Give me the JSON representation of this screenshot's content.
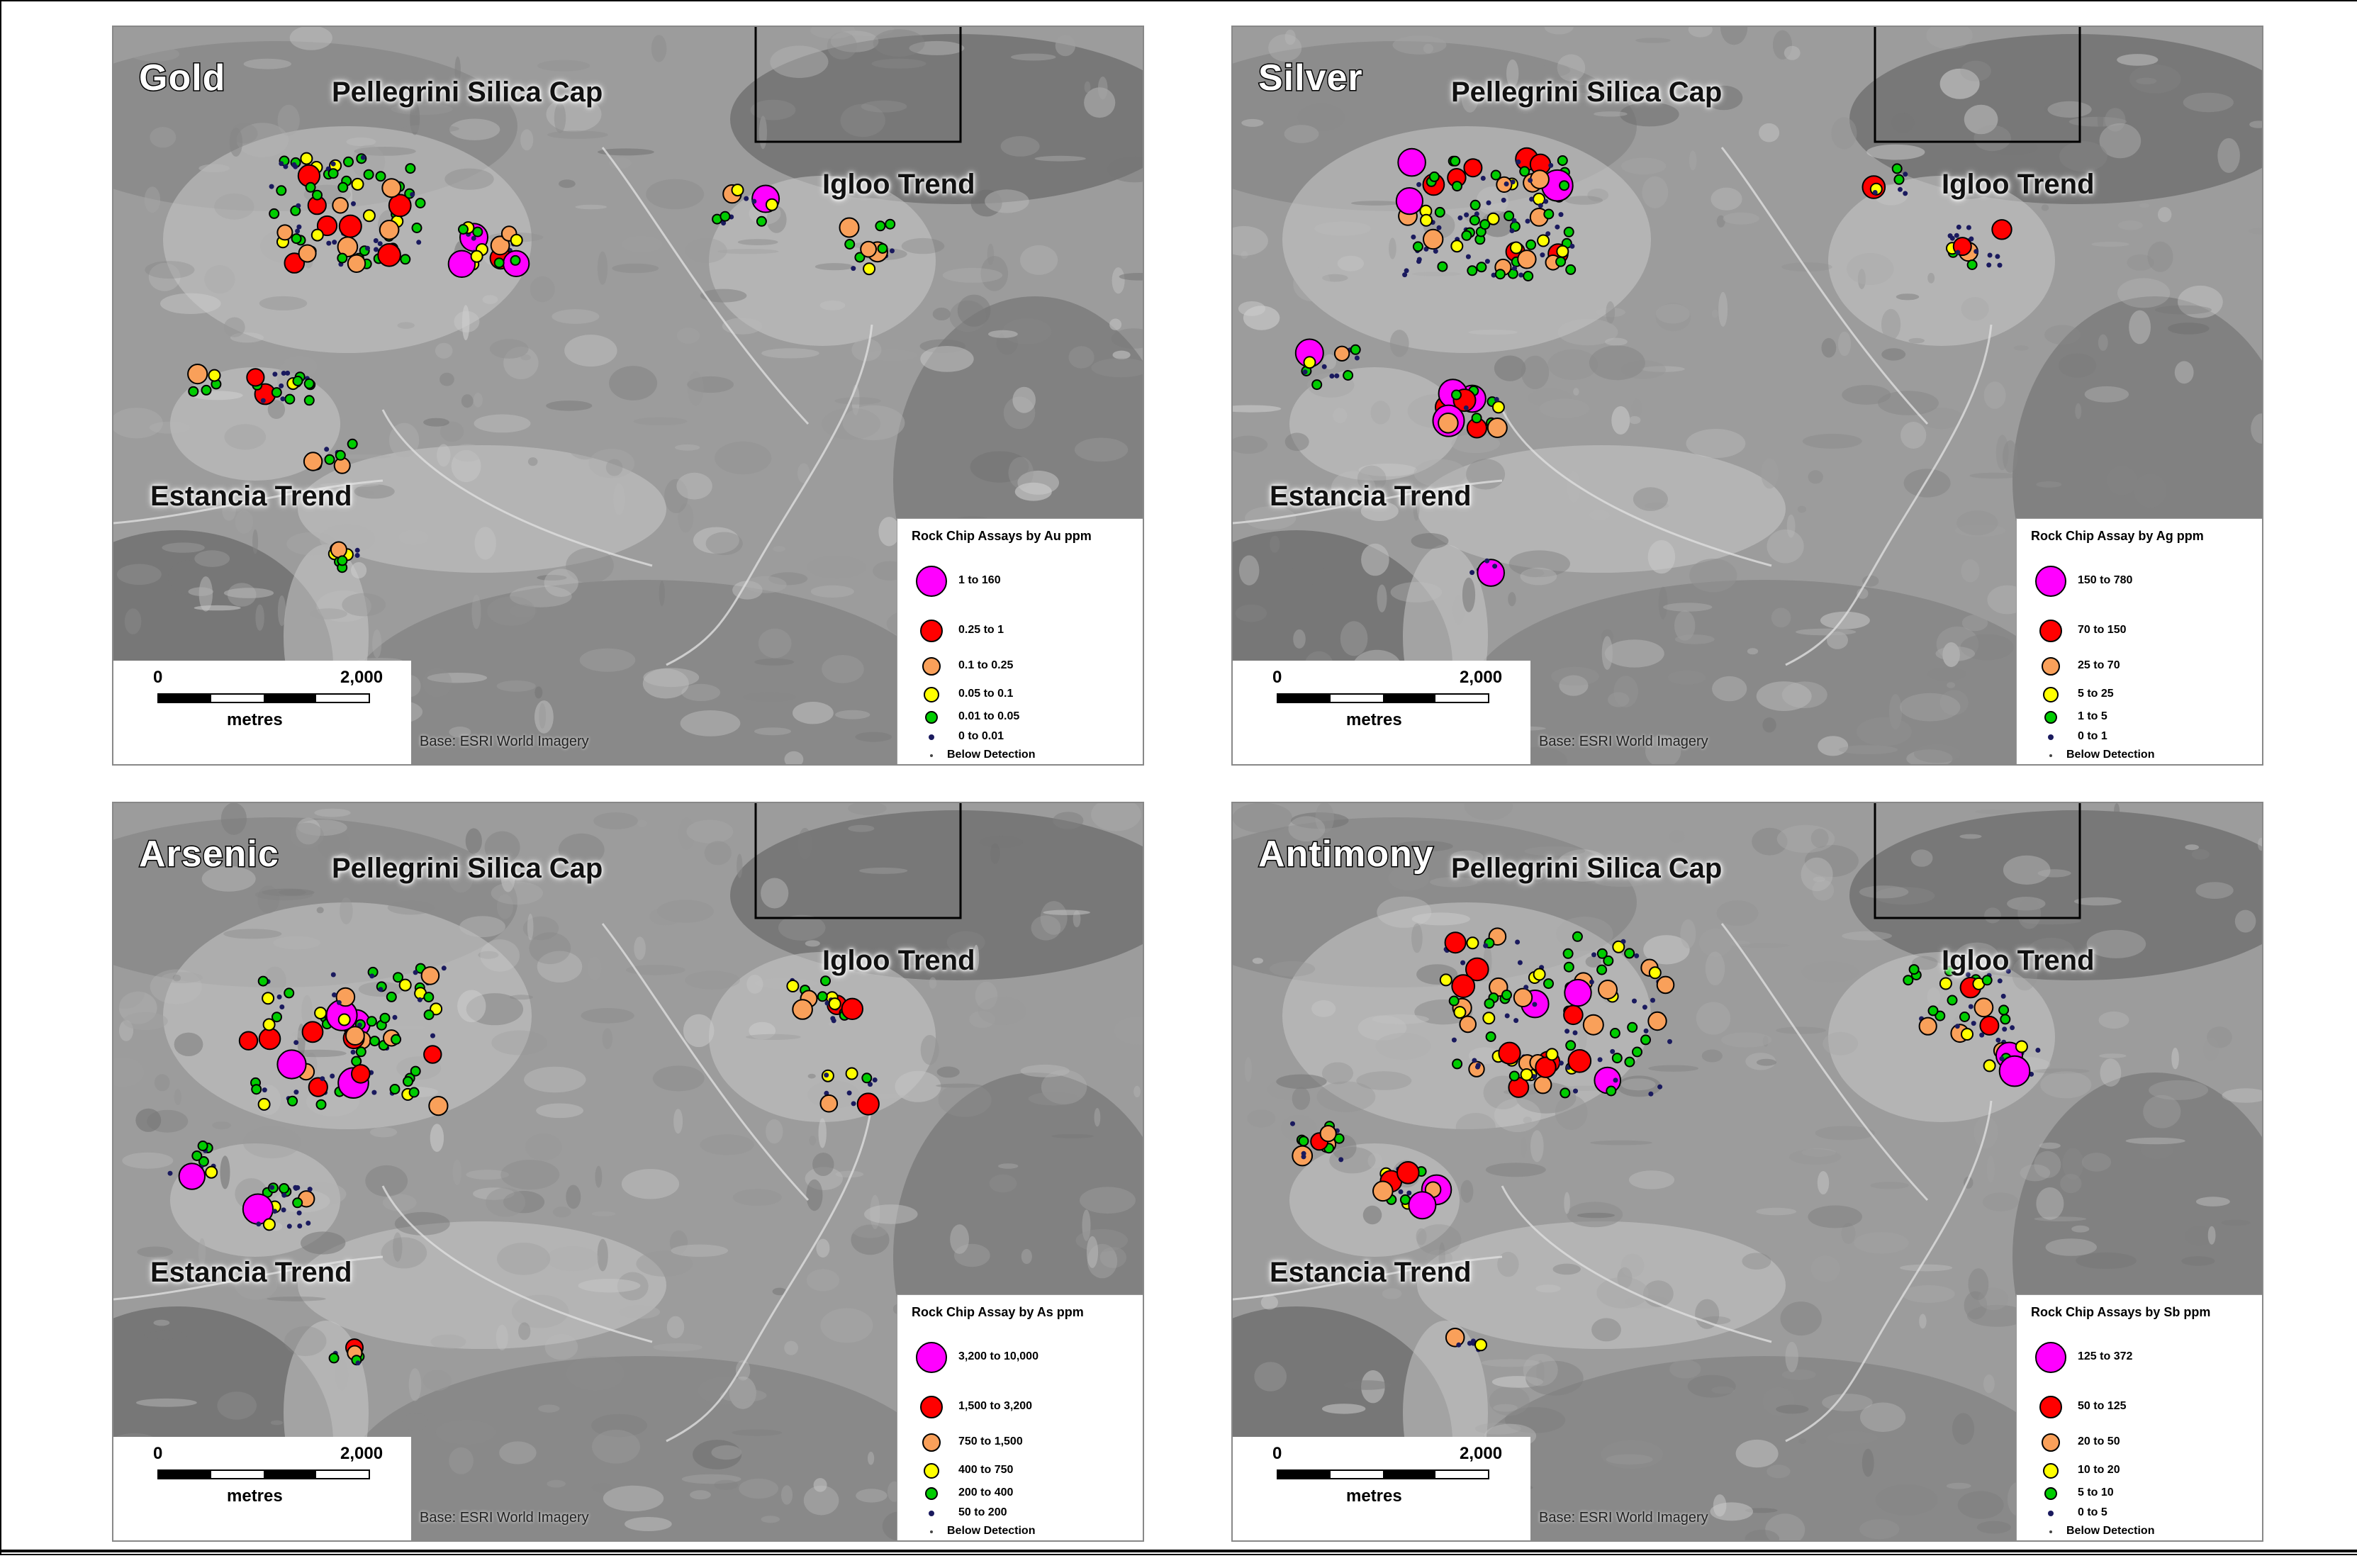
{
  "shared": {
    "labels": {
      "silica_cap": "Pellegrini Silica Cap",
      "igloo": "Igloo Trend",
      "estancia": "Estancia Trend"
    },
    "scale": {
      "zero": "0",
      "max": "2,000",
      "unit": "metres"
    },
    "base_credit": "Base: ESRI World Imagery"
  },
  "panels": [
    {
      "title": "Gold",
      "legend": {
        "title": "Rock Chip Assays by Au ppm",
        "classes": [
          {
            "label": "1      to 160",
            "color": "#ff00ff"
          },
          {
            "label": "0.25 to     1",
            "color": "#ff0000"
          },
          {
            "label": "0.1    to     0.25",
            "color": "#f9a05a"
          },
          {
            "label": "0.05 to     0.1",
            "color": "#ffff00"
          },
          {
            "label": "0.01 to     0.05",
            "color": "#00cc00"
          },
          {
            "label": "0        to     0.01",
            "color": "#1a1a5e"
          },
          {
            "label": "Below Detection",
            "color": "#444444"
          }
        ]
      }
    },
    {
      "title": "Silver",
      "legend": {
        "title": "Rock Chip Assay by Ag ppm",
        "classes": [
          {
            "label": "150 to 780",
            "color": "#ff00ff"
          },
          {
            "label": "70 to  150",
            "color": "#ff0000"
          },
          {
            "label": "25 to    70",
            "color": "#f9a05a"
          },
          {
            "label": "5 to    25",
            "color": "#ffff00"
          },
          {
            "label": "1 to      5",
            "color": "#00cc00"
          },
          {
            "label": "0 to      1",
            "color": "#1a1a5e"
          },
          {
            "label": "Below Detection",
            "color": "#444444"
          }
        ]
      }
    },
    {
      "title": "Arsenic",
      "legend": {
        "title": "Rock Chip Assay by As ppm",
        "classes": [
          {
            "label": "3,200 to 10,000",
            "color": "#ff00ff"
          },
          {
            "label": "1,500 to   3,200",
            "color": "#ff0000"
          },
          {
            "label": "750 to   1,500",
            "color": "#f9a05a"
          },
          {
            "label": "400 to      750",
            "color": "#ffff00"
          },
          {
            "label": "200 to      400",
            "color": "#00cc00"
          },
          {
            "label": "50 to      200",
            "color": "#1a1a5e"
          },
          {
            "label": "Below Detection",
            "color": "#444444"
          }
        ]
      }
    },
    {
      "title": "Antimony",
      "legend": {
        "title": "Rock Chip Assays by Sb ppm",
        "classes": [
          {
            "label": "125 to 372",
            "color": "#ff00ff"
          },
          {
            "label": "50 to 125",
            "color": "#ff0000"
          },
          {
            "label": "20 to   50",
            "color": "#f9a05a"
          },
          {
            "label": "10 to   20",
            "color": "#ffff00"
          },
          {
            "label": "5 to   10",
            "color": "#00cc00"
          },
          {
            "label": "0 to     5",
            "color": "#1a1a5e"
          },
          {
            "label": "Below Detection",
            "color": "#444444"
          }
        ]
      }
    }
  ]
}
